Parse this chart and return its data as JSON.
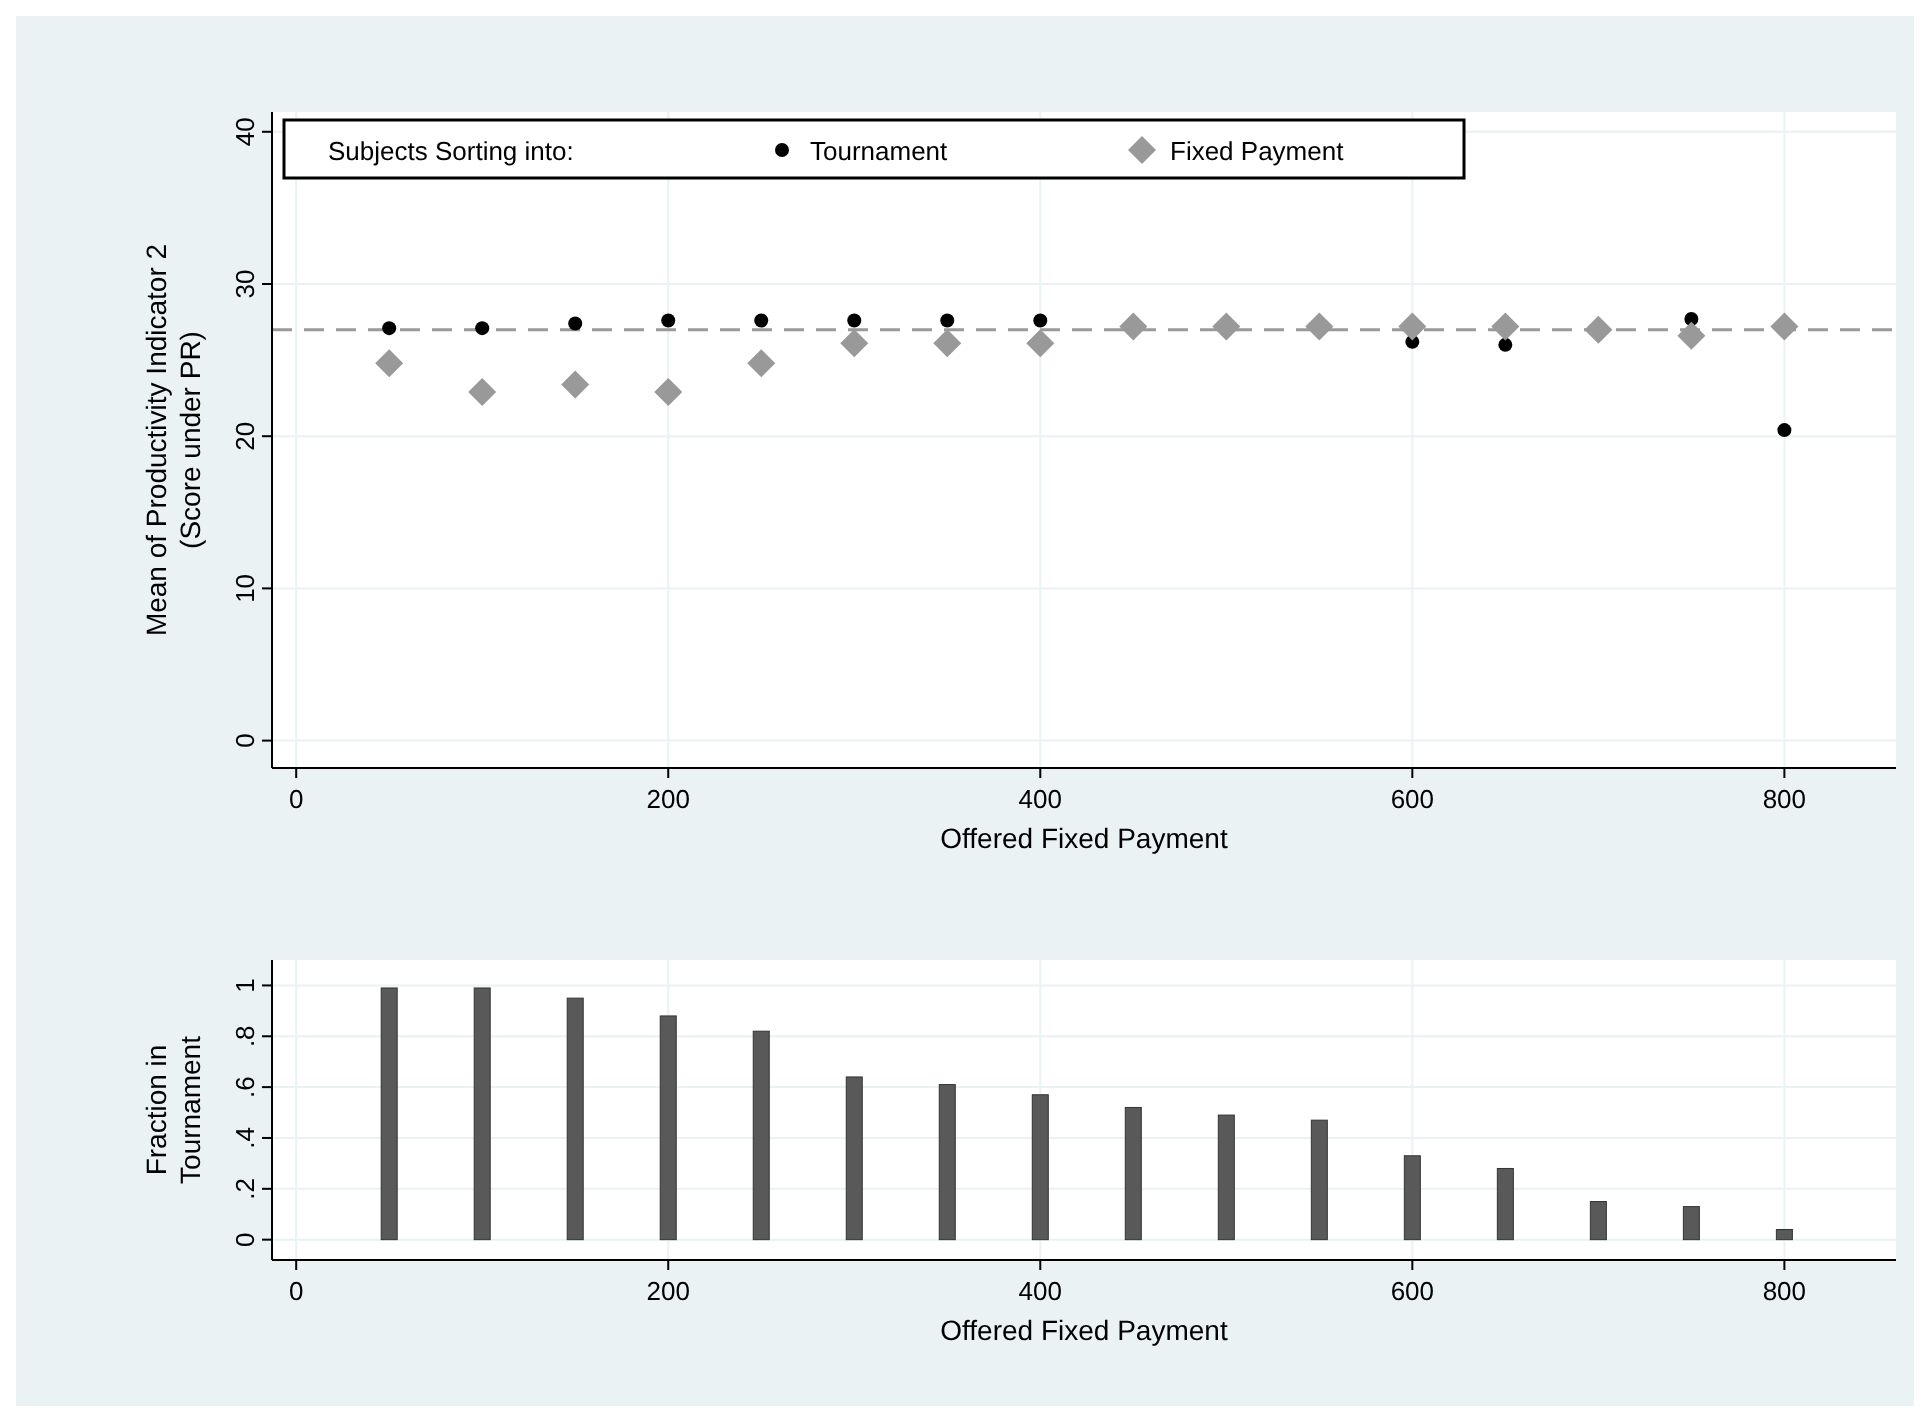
{
  "chart_data": [
    {
      "type": "scatter",
      "xlabel": "Offered Fixed Payment",
      "ylabel": "Mean of Productivity Indicator 2\n(Score under PR)",
      "legend_title": "Subjects Sorting into:",
      "x": [
        50,
        100,
        150,
        200,
        250,
        300,
        350,
        400,
        450,
        500,
        550,
        600,
        650,
        700,
        750,
        800
      ],
      "series": [
        {
          "name": "Tournament",
          "color": "#000000",
          "marker": "circle",
          "values": [
            27.1,
            27.1,
            27.4,
            27.6,
            27.6,
            27.6,
            27.6,
            27.6,
            null,
            null,
            null,
            26.2,
            26.0,
            null,
            27.7,
            20.4
          ]
        },
        {
          "name": "Fixed Payment",
          "color": "#999999",
          "marker": "diamond",
          "values": [
            24.8,
            22.9,
            23.4,
            22.9,
            24.8,
            26.1,
            26.1,
            26.1,
            27.2,
            27.2,
            27.2,
            27.2,
            27.2,
            27.0,
            26.6,
            27.2
          ]
        }
      ],
      "xlim": [
        -13,
        860
      ],
      "xticks": [
        0,
        200,
        400,
        600,
        800
      ],
      "ylim": [
        -1.8,
        41.3
      ],
      "yticks": [
        0,
        10,
        20,
        30,
        40
      ],
      "grid": true,
      "legend": "top left",
      "ref_lines": [
        {
          "axis": "y",
          "value": 27,
          "color": "#999999",
          "line_style": "dashed"
        }
      ]
    },
    {
      "type": "bar",
      "xlabel": "Offered Fixed Payment",
      "ylabel": "Fraction in\nTournament",
      "x": [
        50,
        100,
        150,
        200,
        250,
        300,
        350,
        400,
        450,
        500,
        550,
        600,
        650,
        700,
        750,
        800
      ],
      "values": [
        0.99,
        0.99,
        0.95,
        0.88,
        0.82,
        0.64,
        0.61,
        0.57,
        0.52,
        0.49,
        0.47,
        0.33,
        0.28,
        0.15,
        0.13,
        0.04
      ],
      "color": "#595959",
      "xlim": [
        -13,
        860
      ],
      "xticks": [
        0,
        200,
        400,
        600,
        800
      ],
      "ylim": [
        -0.08,
        1.1
      ],
      "yticks": [
        0,
        {
          "value": 0.2,
          "label": ".2"
        },
        {
          "value": 0.4,
          "label": ".4"
        },
        {
          "value": 0.6,
          "label": ".6"
        },
        {
          "value": 0.8,
          "label": ".8"
        },
        1
      ],
      "grid": true
    }
  ]
}
